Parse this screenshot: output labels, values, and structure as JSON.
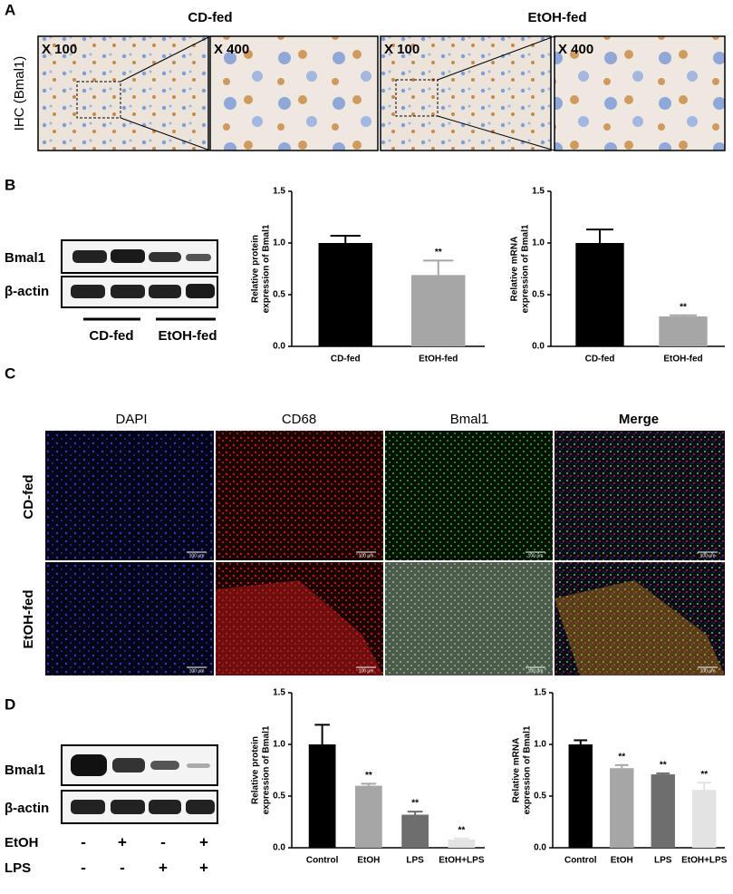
{
  "panel_labels": [
    "A",
    "B",
    "C",
    "D"
  ],
  "panel_a": {
    "groups": [
      "CD-fed",
      "EtOH-fed"
    ],
    "magnifications": [
      "X 100",
      "X 400",
      "X 100",
      "X 400"
    ],
    "row_label": "IHC (Bmal1)"
  },
  "panel_b_blot": {
    "rows": [
      "Bmal1",
      "β-actin"
    ],
    "groups": [
      "CD-fed",
      "EtOH-fed"
    ]
  },
  "panel_c": {
    "columns": [
      "DAPI",
      "CD68",
      "Bmal1",
      "Merge"
    ],
    "rows": [
      "CD-fed",
      "EtOH-fed"
    ],
    "scale_bar": "100 μm"
  },
  "panel_d_blot": {
    "rows": [
      "Bmal1",
      "β-actin"
    ],
    "treatments": [
      {
        "name": "EtOH",
        "signs": [
          "-",
          "+",
          "-",
          "+"
        ]
      },
      {
        "name": "LPS",
        "signs": [
          "-",
          "-",
          "+",
          "+"
        ]
      }
    ]
  },
  "chart_data": [
    {
      "type": "bar",
      "ylabel": [
        "Relative protein",
        "expression of Bmal1"
      ],
      "categories": [
        "CD-fed",
        "EtOH-fed"
      ],
      "values": [
        1.0,
        0.69
      ],
      "errors": [
        0.07,
        0.14
      ],
      "colors": [
        "#000000",
        "#a6a6a6"
      ],
      "significance": [
        {
          "category": "EtOH-fed",
          "label": "**"
        }
      ],
      "ylim": [
        0,
        1.5
      ],
      "yticks": [
        {
          "value": 0,
          "label": "0.0"
        },
        0.5,
        {
          "value": 1,
          "label": "1.0"
        },
        1.5
      ]
    },
    {
      "type": "bar",
      "ylabel": [
        "Relative mRNA",
        "expression of Bmal1"
      ],
      "categories": [
        "CD-fed",
        "EtOH-fed"
      ],
      "values": [
        1.0,
        0.29
      ],
      "errors": [
        0.13,
        0.01
      ],
      "colors": [
        "#000000",
        "#a6a6a6"
      ],
      "significance": [
        {
          "category": "EtOH-fed",
          "label": "**"
        }
      ],
      "ylim": [
        0,
        1.5
      ],
      "yticks": [
        {
          "value": 0,
          "label": "0.0"
        },
        0.5,
        {
          "value": 1,
          "label": "1.0"
        },
        1.5
      ]
    },
    {
      "type": "bar",
      "ylabel": [
        "Relative protein",
        "expression of Bmal1"
      ],
      "categories": [
        "Control",
        "EtOH",
        "LPS",
        "EtOH+LPS"
      ],
      "values": [
        1.0,
        0.6,
        0.32,
        0.08
      ],
      "errors": [
        0.19,
        0.02,
        0.03,
        0.01
      ],
      "colors": [
        "#000000",
        "#a6a6a6",
        "#6e6e6e",
        "#e3e3e3"
      ],
      "significance": [
        {
          "category": "EtOH",
          "label": "**"
        },
        {
          "category": "LPS",
          "label": "**"
        },
        {
          "category": "EtOH+LPS",
          "label": "**"
        }
      ],
      "ylim": [
        0,
        1.5
      ],
      "yticks": [
        {
          "value": 0,
          "label": "0.0"
        },
        0.5,
        {
          "value": 1,
          "label": "1.0"
        },
        1.5
      ]
    },
    {
      "type": "bar",
      "ylabel": [
        "Relative mRNA",
        "expression of Bmal1"
      ],
      "categories": [
        "Control",
        "EtOH",
        "LPS",
        "EtOH+LPS"
      ],
      "values": [
        1.0,
        0.77,
        0.71,
        0.56
      ],
      "errors": [
        0.04,
        0.03,
        0.01,
        0.07
      ],
      "colors": [
        "#000000",
        "#a6a6a6",
        "#6e6e6e",
        "#e3e3e3"
      ],
      "significance": [
        {
          "category": "EtOH",
          "label": "**"
        },
        {
          "category": "LPS",
          "label": "**"
        },
        {
          "category": "EtOH+LPS",
          "label": "**"
        }
      ],
      "ylim": [
        0,
        1.5
      ],
      "yticks": [
        {
          "value": 0,
          "label": "0.0"
        },
        0.5,
        {
          "value": 1,
          "label": "1.0"
        },
        1.5
      ]
    }
  ]
}
